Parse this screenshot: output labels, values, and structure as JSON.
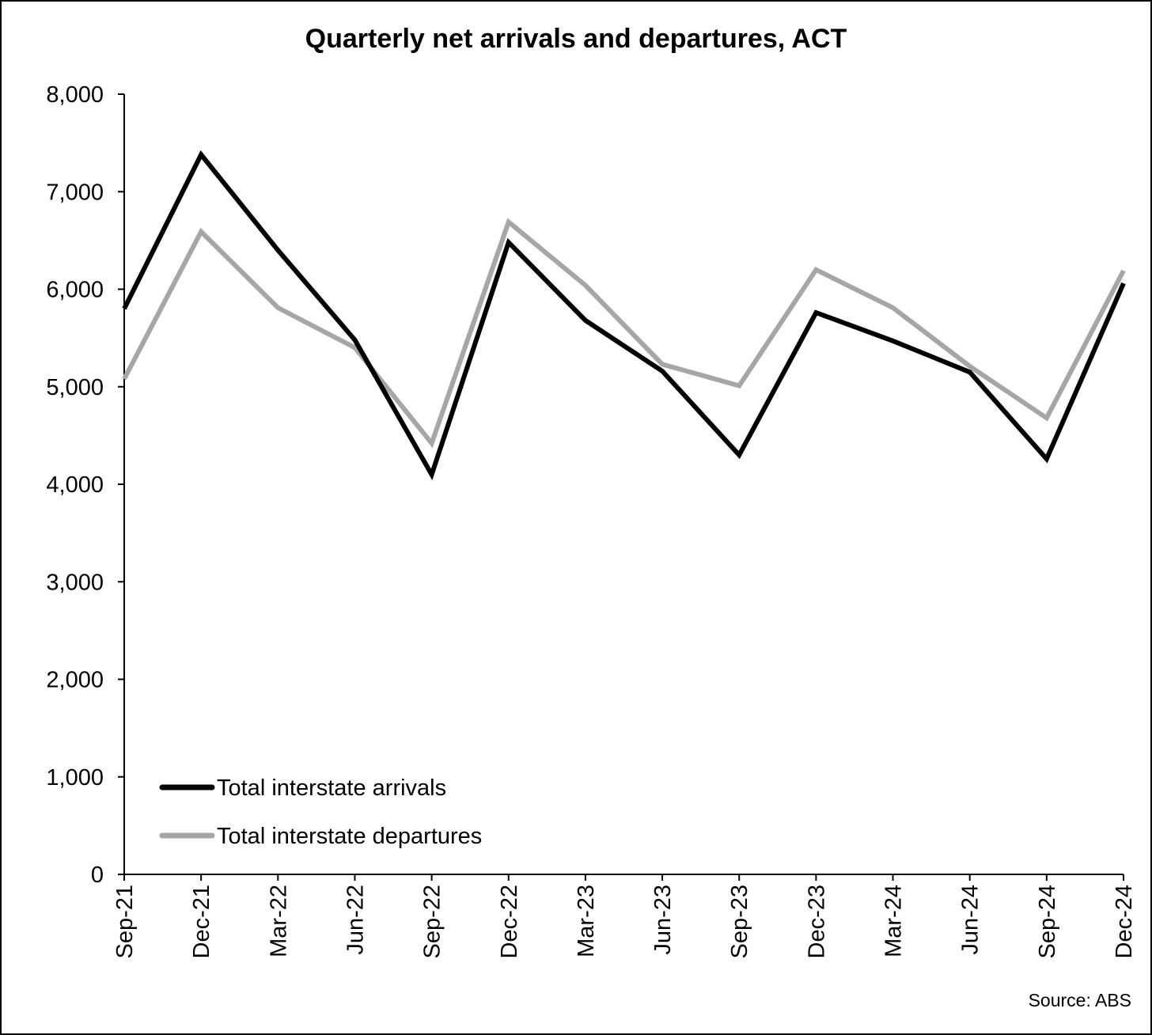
{
  "chart_data": {
    "type": "line",
    "title": "Quarterly net arrivals and departures, ACT",
    "xlabel": "",
    "ylabel": "",
    "categories": [
      "Sep-21",
      "Dec-21",
      "Mar-22",
      "Jun-22",
      "Sep-22",
      "Dec-22",
      "Mar-23",
      "Jun-23",
      "Sep-23",
      "Dec-23",
      "Mar-24",
      "Jun-24",
      "Sep-24",
      "Dec-24"
    ],
    "ylim": [
      0,
      8000
    ],
    "yticks": [
      0,
      1000,
      2000,
      3000,
      4000,
      5000,
      6000,
      7000,
      8000
    ],
    "ytick_labels": [
      "0",
      "1,000",
      "2,000",
      "3,000",
      "4,000",
      "5,000",
      "6,000",
      "7,000",
      "8,000"
    ],
    "grid": false,
    "legend_position": "bottom-left",
    "series": [
      {
        "name": "Total interstate arrivals",
        "color": "#000000",
        "values": [
          5800,
          7380,
          6400,
          5480,
          4100,
          6480,
          5680,
          5160,
          4300,
          5760,
          5470,
          5150,
          4260,
          6060
        ]
      },
      {
        "name": "Total interstate departures",
        "color": "#a6a6a6",
        "values": [
          5080,
          6590,
          5810,
          5400,
          4420,
          6690,
          6040,
          5230,
          5010,
          6200,
          5810,
          5210,
          4680,
          6190
        ]
      }
    ],
    "source": "Source: ABS"
  }
}
